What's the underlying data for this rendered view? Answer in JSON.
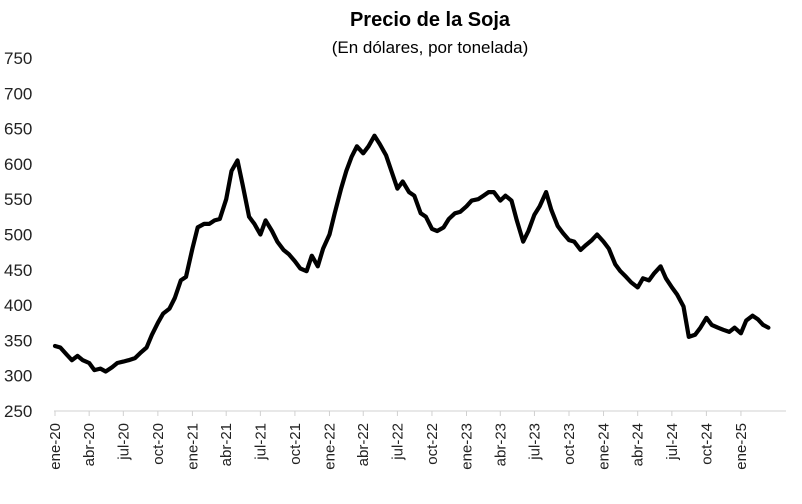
{
  "chart_data": {
    "type": "line",
    "title": "Precio de la Soja",
    "subtitle": "(En dólares, por tonelada)",
    "xlabel": "",
    "ylabel": "",
    "ylim": [
      250,
      750
    ],
    "yticks": [
      250,
      300,
      350,
      400,
      450,
      500,
      550,
      600,
      650,
      700,
      750
    ],
    "xticks": [
      "ene-20",
      "abr-20",
      "jul-20",
      "oct-20",
      "ene-21",
      "abr-21",
      "jul-21",
      "oct-21",
      "ene-22",
      "abr-22",
      "jul-22",
      "oct-22",
      "ene-23",
      "abr-23",
      "jul-23",
      "oct-23",
      "ene-24",
      "abr-24",
      "jul-24",
      "oct-24",
      "ene-25"
    ],
    "grid": false,
    "legend": "none",
    "line_color": "#000000",
    "series": [
      {
        "x": [
          "2020-01-01",
          "2020-01-15",
          "2020-02-01",
          "2020-02-15",
          "2020-03-01",
          "2020-03-15",
          "2020-04-01",
          "2020-04-15",
          "2020-05-01",
          "2020-05-15",
          "2020-06-01",
          "2020-06-15",
          "2020-07-01",
          "2020-07-15",
          "2020-08-01",
          "2020-08-15",
          "2020-09-01",
          "2020-09-15",
          "2020-10-01",
          "2020-10-15",
          "2020-11-01",
          "2020-11-15",
          "2020-12-01",
          "2020-12-15",
          "2021-01-01",
          "2021-01-15",
          "2021-02-01",
          "2021-02-15",
          "2021-03-01",
          "2021-03-15",
          "2021-04-01",
          "2021-04-15",
          "2021-05-01",
          "2021-05-15",
          "2021-06-01",
          "2021-06-15",
          "2021-07-01",
          "2021-07-15",
          "2021-08-01",
          "2021-08-15",
          "2021-09-01",
          "2021-09-15",
          "2021-10-01",
          "2021-10-15",
          "2021-11-01",
          "2021-11-15",
          "2021-12-01",
          "2021-12-15",
          "2022-01-01",
          "2022-01-15",
          "2022-02-01",
          "2022-02-15",
          "2022-03-01",
          "2022-03-15",
          "2022-04-01",
          "2022-04-15",
          "2022-05-01",
          "2022-05-15",
          "2022-06-01",
          "2022-06-15",
          "2022-07-01",
          "2022-07-15",
          "2022-08-01",
          "2022-08-15",
          "2022-09-01",
          "2022-09-15",
          "2022-10-01",
          "2022-10-15",
          "2022-11-01",
          "2022-11-15",
          "2022-12-01",
          "2022-12-15",
          "2023-01-01",
          "2023-01-15",
          "2023-02-01",
          "2023-02-15",
          "2023-03-01",
          "2023-03-15",
          "2023-04-01",
          "2023-04-15",
          "2023-05-01",
          "2023-05-15",
          "2023-06-01",
          "2023-06-15",
          "2023-07-01",
          "2023-07-15",
          "2023-08-01",
          "2023-08-15",
          "2023-09-01",
          "2023-09-15",
          "2023-10-01",
          "2023-10-15",
          "2023-11-01",
          "2023-11-15",
          "2023-12-01",
          "2023-12-15",
          "2024-01-01",
          "2024-01-15",
          "2024-02-01",
          "2024-02-15",
          "2024-03-01",
          "2024-03-15",
          "2024-04-01",
          "2024-04-15",
          "2024-05-01",
          "2024-05-15",
          "2024-06-01",
          "2024-06-15",
          "2024-07-01",
          "2024-07-15",
          "2024-08-01",
          "2024-08-15",
          "2024-09-01",
          "2024-09-15",
          "2024-10-01",
          "2024-10-15",
          "2024-11-01",
          "2024-11-15",
          "2024-12-01",
          "2024-12-15",
          "2025-01-01",
          "2025-01-15",
          "2025-02-01",
          "2025-02-15",
          "2025-03-01",
          "2025-03-15"
        ],
        "y": [
          342,
          340,
          330,
          322,
          328,
          322,
          318,
          308,
          310,
          306,
          312,
          318,
          320,
          322,
          325,
          332,
          340,
          358,
          375,
          388,
          395,
          410,
          435,
          440,
          480,
          510,
          515,
          515,
          520,
          522,
          550,
          590,
          605,
          570,
          525,
          515,
          500,
          520,
          505,
          490,
          478,
          472,
          462,
          452,
          448,
          470,
          455,
          480,
          500,
          530,
          565,
          590,
          610,
          625,
          615,
          625,
          640,
          628,
          612,
          590,
          565,
          575,
          560,
          555,
          530,
          525,
          508,
          505,
          510,
          522,
          530,
          532,
          540,
          548,
          550,
          555,
          560,
          560,
          548,
          555,
          548,
          520,
          490,
          505,
          528,
          540,
          560,
          535,
          512,
          502,
          492,
          490,
          478,
          485,
          492,
          500,
          490,
          480,
          458,
          448,
          440,
          432,
          425,
          438,
          435,
          445,
          455,
          438,
          425,
          415,
          398,
          355,
          358,
          368,
          382,
          372,
          368,
          365,
          362,
          368,
          360,
          378,
          385,
          380,
          372,
          368
        ]
      }
    ]
  }
}
